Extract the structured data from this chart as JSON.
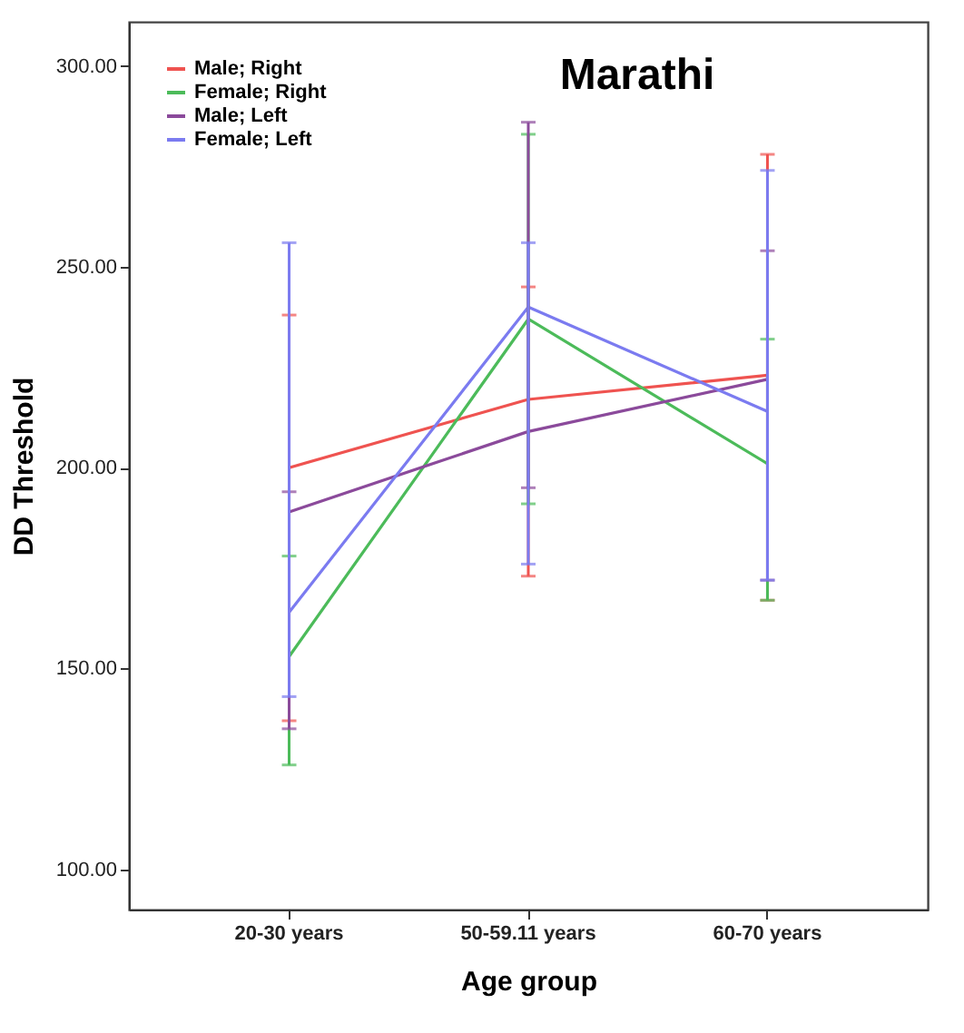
{
  "chart_data": {
    "type": "line",
    "title": "Marathi",
    "xlabel": "Age group",
    "ylabel": "DD Threshold",
    "categories": [
      "20-30 years",
      "50-59.11 years",
      "60-70 years"
    ],
    "ylim": [
      90,
      311
    ],
    "yticks": [
      {
        "value": 100,
        "label": "100.00"
      },
      {
        "value": 150,
        "label": "150.00"
      },
      {
        "value": 200,
        "label": "200.00"
      },
      {
        "value": 250,
        "label": "250.00"
      },
      {
        "value": 300,
        "label": "300.00"
      }
    ],
    "grid": false,
    "legend": "top left",
    "marker": "none",
    "line_style": "solid",
    "series": [
      {
        "name": "Male; Right",
        "color": "#ef5350",
        "values": [
          200,
          217,
          223
        ],
        "errors": [
          [
            137,
            238
          ],
          [
            173,
            245
          ],
          [
            167,
            278
          ]
        ]
      },
      {
        "name": "Female; Right",
        "color": "#4cbb5a",
        "values": [
          153,
          237,
          201
        ],
        "errors": [
          [
            126,
            178
          ],
          [
            191,
            283
          ],
          [
            167,
            232
          ]
        ]
      },
      {
        "name": "Male; Left",
        "color": "#8b4a9b",
        "values": [
          189,
          209,
          222
        ],
        "errors": [
          [
            135,
            194
          ],
          [
            195,
            286
          ],
          [
            172,
            254
          ]
        ]
      },
      {
        "name": "Female; Left",
        "color": "#7b7bf0",
        "values": [
          164,
          240,
          214
        ],
        "errors": [
          [
            143,
            256
          ],
          [
            176,
            256
          ],
          [
            172,
            274
          ]
        ]
      }
    ]
  }
}
